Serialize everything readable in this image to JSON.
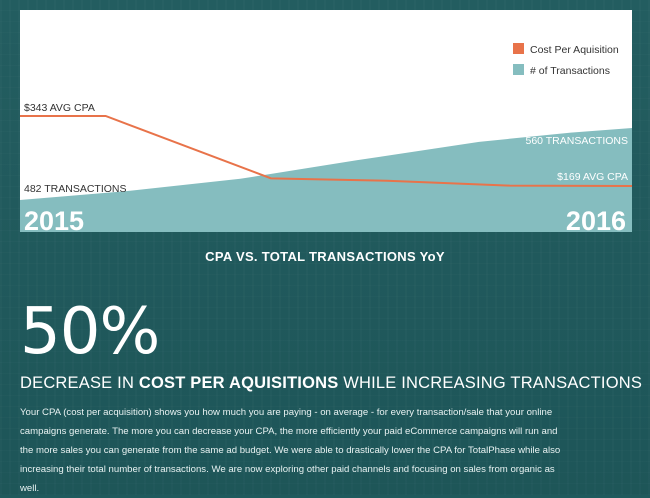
{
  "chart_data": {
    "type": "line",
    "title": "CPA VS. TOTAL TRANSACTIONS YoY",
    "x": [
      "2015",
      "2016"
    ],
    "series": [
      {
        "name": "Cost Per Aquisition",
        "type": "line",
        "color": "#e8734a",
        "x": [
          0,
          0.14,
          0.41,
          0.6,
          0.8,
          1.0
        ],
        "values": [
          343,
          343,
          188,
          182,
          170,
          169
        ],
        "start_label": "$343 AVG CPA",
        "end_label": "$169 AVG CPA"
      },
      {
        "name": "# of Transactions",
        "type": "area",
        "color": "#85bdbf",
        "x": [
          0,
          0.18,
          0.36,
          0.55,
          0.75,
          0.9,
          1.0
        ],
        "values": [
          482,
          492,
          505,
          525,
          545,
          555,
          560
        ],
        "start_label": "482 TRANSACTIONS",
        "end_label": "560 TRANSACTIONS"
      }
    ],
    "year_labels": {
      "start": "2015",
      "end": "2016"
    },
    "legend": {
      "position": "top-right"
    }
  },
  "stat": {
    "number": "50%",
    "headline_prefix": "DECREASE IN ",
    "headline_strong": "COST PER AQUISITIONS",
    "headline_suffix": " WHILE INCREASING TRANSACTIONS"
  },
  "body_text": "Your CPA (cost per acquisition) shows you how much you are paying - on average - for every transaction/sale that your online campaigns generate. The more you can decrease your CPA, the more efficiently your paid eCommerce campaigns will run and the more sales you can generate from the same ad budget. We were able to drastically lower the CPA for TotalPhase while also increasing their total number of transactions. We are now exploring other paid channels and focusing on sales from organic as well."
}
